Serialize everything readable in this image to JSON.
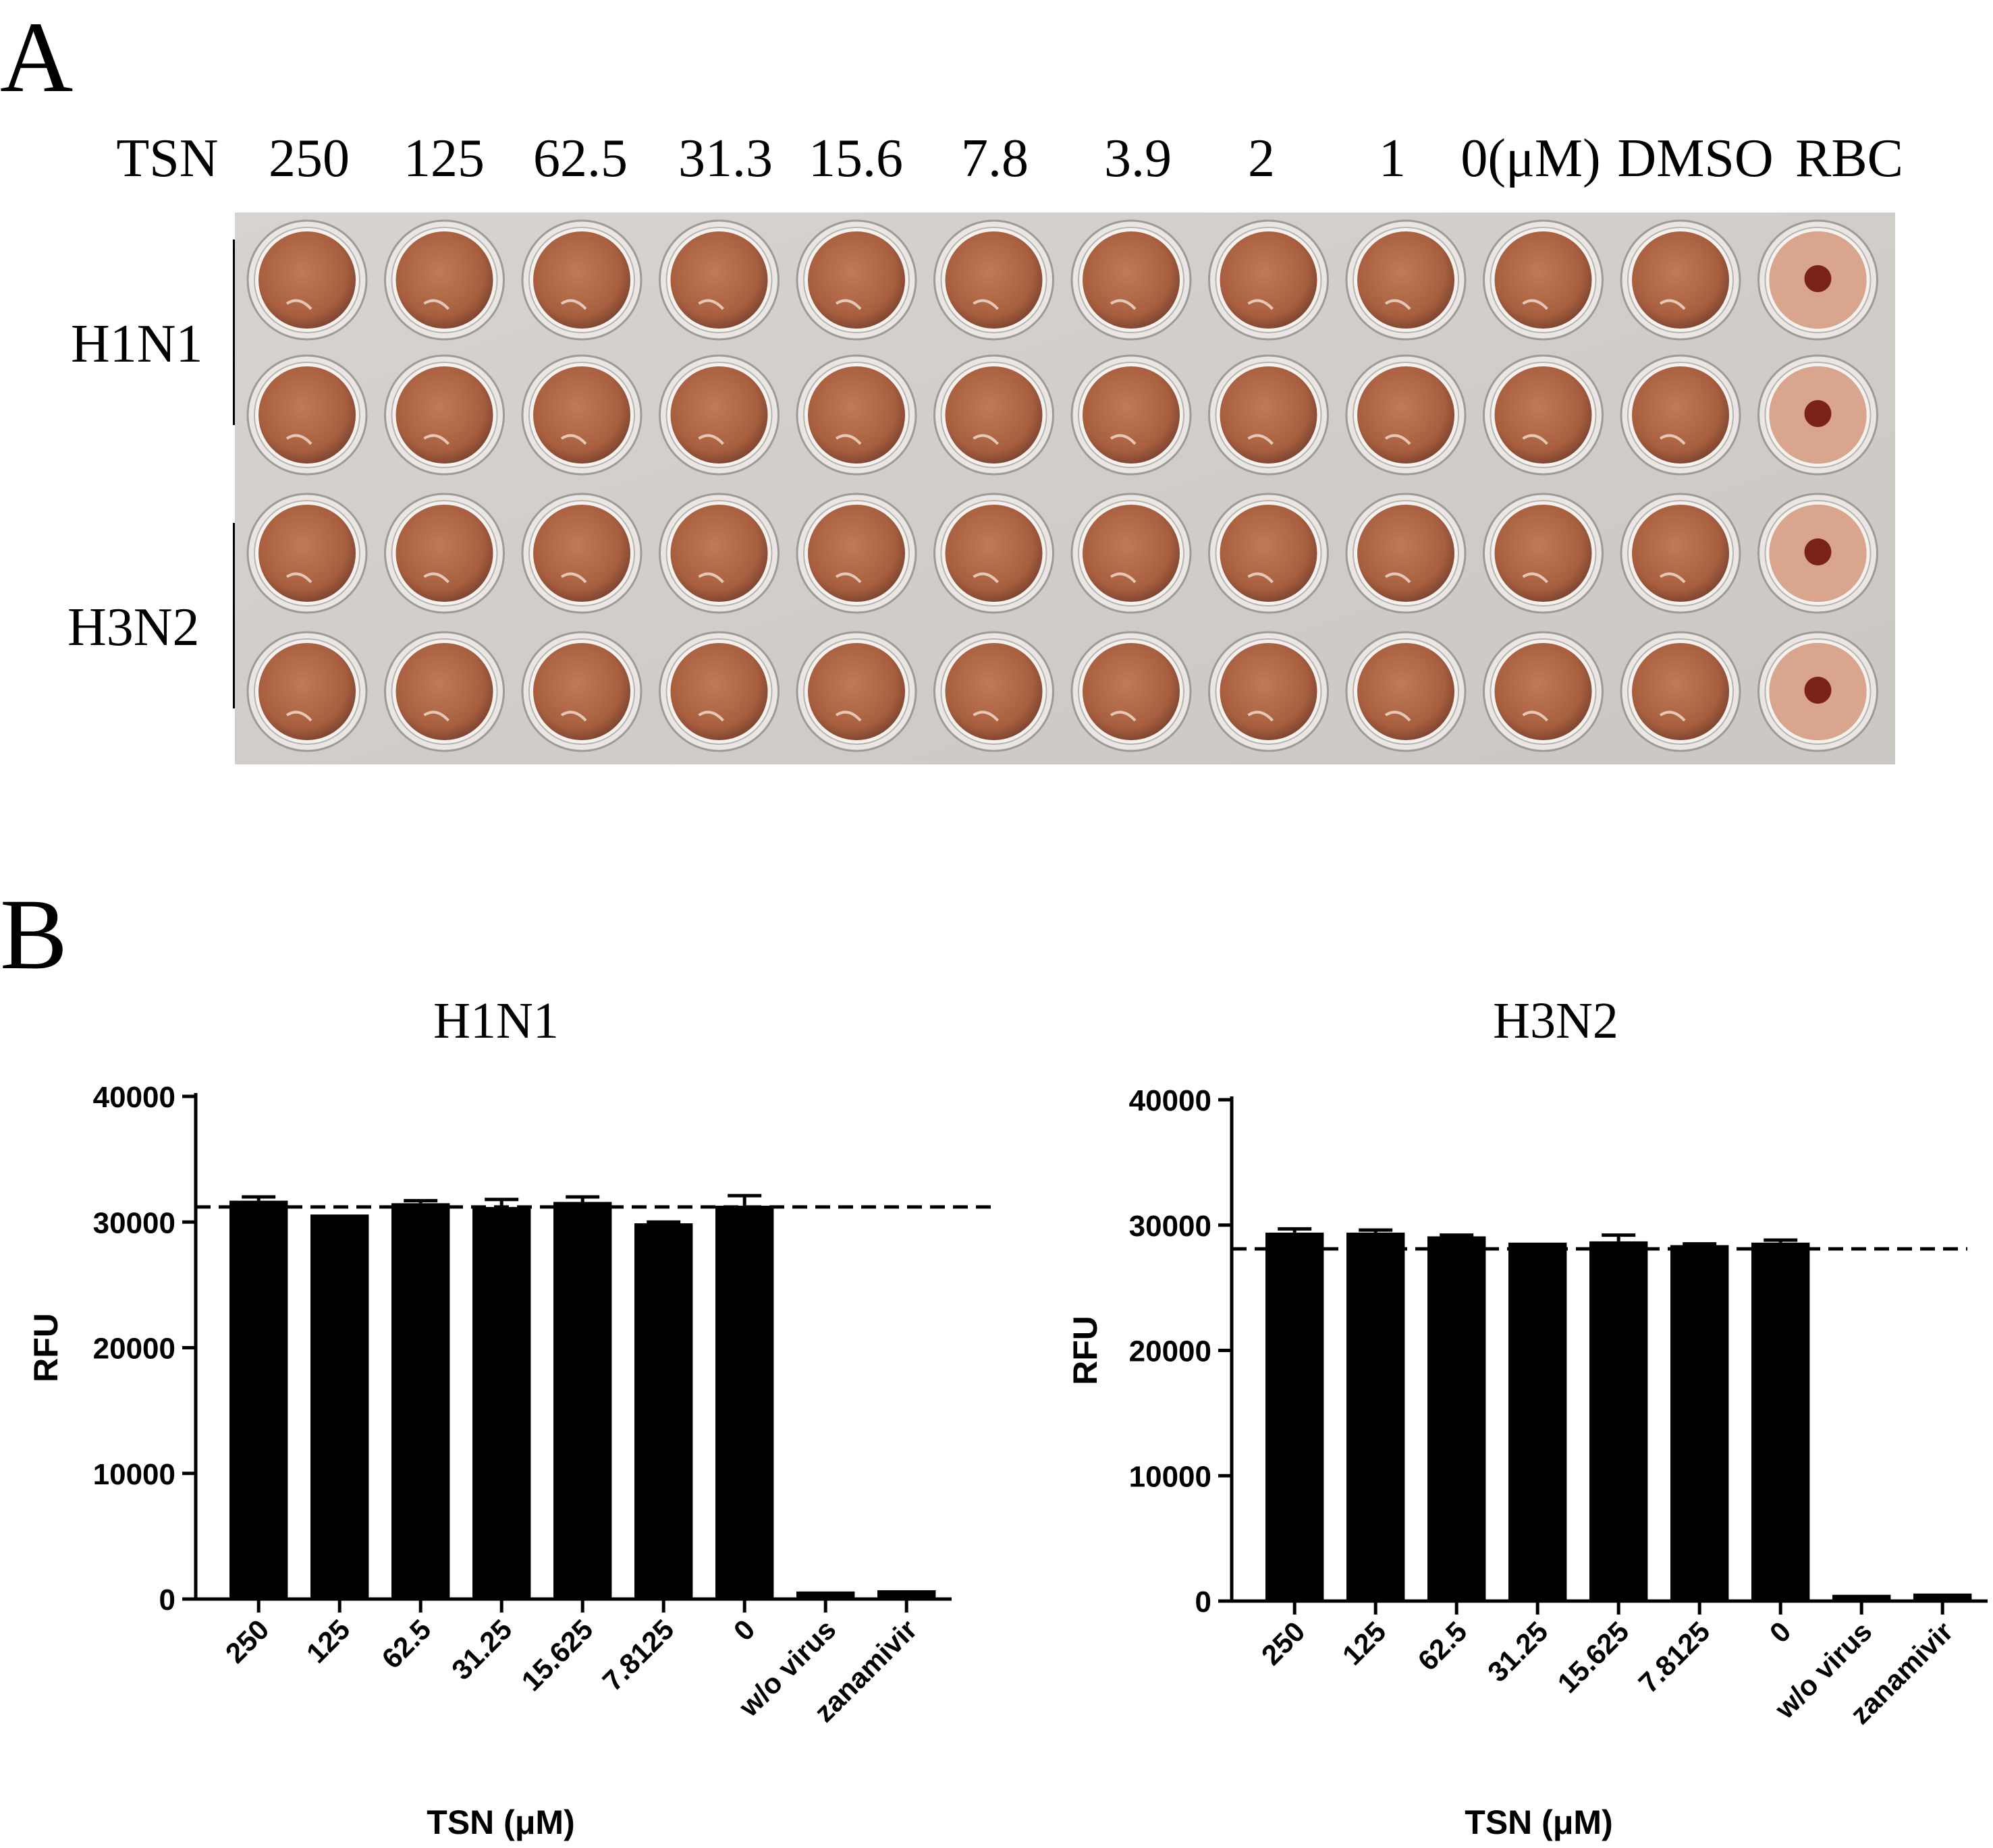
{
  "panel_a": {
    "letter": "A",
    "concentration_labels": [
      "TSN",
      "250",
      "125",
      "62.5",
      "31.3",
      "15.6",
      "7.8",
      "3.9",
      "2",
      "1",
      "0(μM)",
      "DMSO",
      "RBC"
    ],
    "row_groups": [
      "H1N1",
      "H3N2"
    ],
    "plate": {
      "rows": 4,
      "columns": 12,
      "well_color": "#b46a48",
      "button_well_column": 12,
      "button_color": "#7a2216"
    }
  },
  "panel_b": {
    "letter": "B"
  },
  "chart_data": [
    {
      "type": "bar",
      "title": "H1N1",
      "xlabel": "TSN (μM)",
      "ylabel": "RFU",
      "categories": [
        "250",
        "125",
        "62.5",
        "31.25",
        "15.625",
        "7.8125",
        "0",
        "w/o virus",
        "zanamivir"
      ],
      "values": [
        31700,
        30600,
        31500,
        31200,
        31600,
        29900,
        31300,
        600,
        700
      ],
      "errors": [
        300,
        0,
        200,
        600,
        400,
        100,
        800,
        0,
        0
      ],
      "reference_line": 31200,
      "ylim": [
        0,
        40000
      ],
      "yticks": [
        "0",
        "10000",
        "20000",
        "30000",
        "40000"
      ],
      "bar_color": "#000000"
    },
    {
      "type": "bar",
      "title": "H3N2",
      "xlabel": "TSN (μM)",
      "ylabel": "RFU",
      "categories": [
        "250",
        "125",
        "62.5",
        "31.25",
        "15.625",
        "7.8125",
        "0",
        "w/o virus",
        "zanamivir"
      ],
      "values": [
        29400,
        29400,
        29100,
        28600,
        28700,
        28400,
        28600,
        500,
        600
      ],
      "errors": [
        300,
        200,
        100,
        0,
        500,
        100,
        200,
        0,
        0
      ],
      "reference_line": 28100,
      "ylim": [
        0,
        40000
      ],
      "yticks": [
        "0",
        "10000",
        "20000",
        "30000",
        "40000"
      ],
      "bar_color": "#000000"
    }
  ]
}
